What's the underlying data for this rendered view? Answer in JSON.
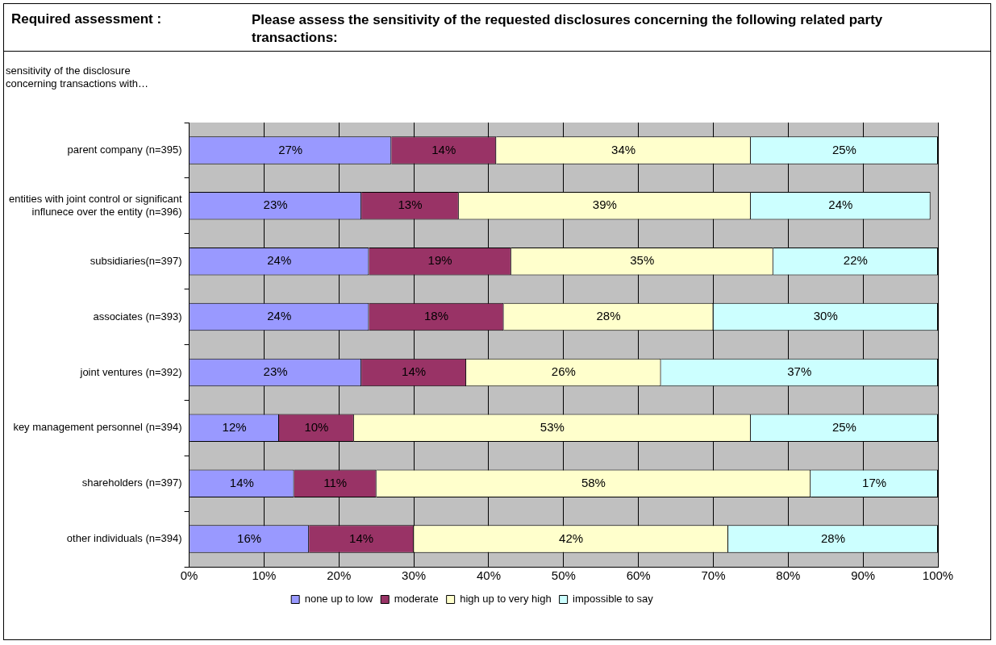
{
  "chart_data": {
    "type": "bar",
    "orientation": "horizontal",
    "stacked": true,
    "title": "Please assess the sensitivity of the requested disclosures concerning the following related party transactions:",
    "annotations": [
      "Required assessment :"
    ],
    "ylabel": "sensitivity of the disclosure concerning transactions with…",
    "categories": [
      "parent company (n=395)",
      "entities with joint control or significant influnece over the entity (n=396)",
      "subsidiaries(n=397)",
      "associates (n=393)",
      "joint ventures (n=392)",
      "key management personnel (n=394)",
      "shareholders (n=397)",
      "other individuals (n=394)"
    ],
    "series": [
      {
        "name": "none up to low",
        "color": "#9999ff",
        "values": [
          27,
          23,
          24,
          24,
          23,
          12,
          14,
          16
        ],
        "value_labels": [
          "27%",
          "23%",
          "24%",
          "24%",
          "23%",
          "12%",
          "14%",
          "16%"
        ]
      },
      {
        "name": "moderate",
        "color": "#993366",
        "values": [
          14,
          13,
          19,
          18,
          14,
          10,
          11,
          14
        ],
        "value_labels": [
          "14%",
          "13%",
          "19%",
          "18%",
          "14%",
          "10%",
          "11%",
          "14%"
        ]
      },
      {
        "name": "high up to very high",
        "color": "#ffffcc",
        "values": [
          34,
          39,
          35,
          28,
          26,
          53,
          58,
          42
        ],
        "value_labels": [
          "34%",
          "39%",
          "35%",
          "28%",
          "26%",
          "53%",
          "58%",
          "42%"
        ]
      },
      {
        "name": "impossible to say",
        "color": "#ccffff",
        "values": [
          25,
          24,
          22,
          30,
          37,
          25,
          17,
          28
        ],
        "value_labels": [
          "25%",
          "24%",
          "22%",
          "30%",
          "37%",
          "25%",
          "17%",
          "28%"
        ]
      }
    ],
    "xlim": [
      0,
      100
    ],
    "xticks": [
      {
        "value": 0,
        "label": "0%"
      },
      {
        "value": 10,
        "label": "10%"
      },
      {
        "value": 20,
        "label": "20%"
      },
      {
        "value": 30,
        "label": "30%"
      },
      {
        "value": 40,
        "label": "40%"
      },
      {
        "value": 50,
        "label": "50%"
      },
      {
        "value": 60,
        "label": "60%"
      },
      {
        "value": 70,
        "label": "70%"
      },
      {
        "value": 80,
        "label": "80%"
      },
      {
        "value": 90,
        "label": "90%"
      },
      {
        "value": 100,
        "label": "100%"
      }
    ],
    "grid": "x",
    "legend": "bottom"
  }
}
